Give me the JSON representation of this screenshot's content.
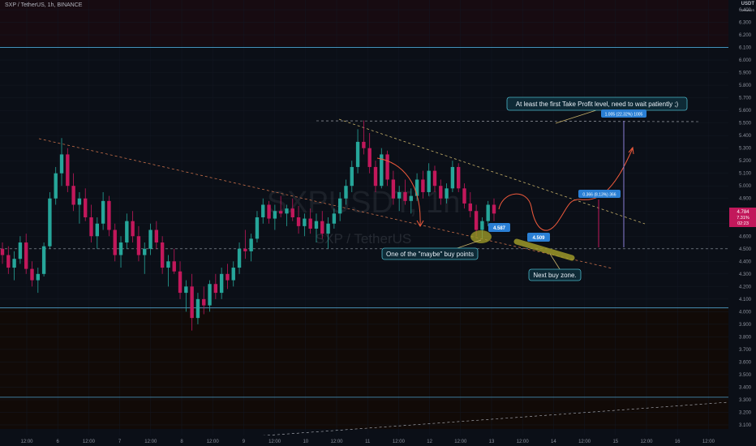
{
  "header": {
    "symbol_line": "SXP / TetherUS, 1h, BINANCE",
    "currency_top": "USDT",
    "currency_sub": "TetherUS"
  },
  "watermark": {
    "ticker": "SXPUSDT, 1h",
    "name": "SXP / TetherUS"
  },
  "annotations": {
    "maybe_buy": "One of the \"maybe\" buy points",
    "next_buy": "Next buy zone.",
    "take_profit": "At least the first Take Profit level, need to wait patiently ;)"
  },
  "price_labels": {
    "low1": "4.587",
    "low2": "4.509",
    "measure1": "0.366 (8.13%) 366",
    "measure2": "1.005 (22.32%) 1005",
    "last_price": "4.784",
    "last_change": "7.31%",
    "countdown": "02:23"
  },
  "colors": {
    "background": "#0b0f17",
    "bull": "#26a69a",
    "bear": "#c2185b",
    "annotation_line": "#c8b26a",
    "hline": "#4fa3d1",
    "curve": "#f05a3c",
    "callout_fill": "#0e2a36",
    "callout_border": "#4bb6c8",
    "label_blue": "#2a7fd4",
    "ellipse": "#a6a12a"
  },
  "chart_data": {
    "type": "candlestick",
    "title": "SXP / TetherUS, 1h, BINANCE",
    "ylim": [
      3.0,
      6.5
    ],
    "y_ticks": [
      "6.400",
      "6.300",
      "6.200",
      "6.100",
      "6.000",
      "5.900",
      "5.800",
      "5.700",
      "5.600",
      "5.500",
      "5.400",
      "5.300",
      "5.200",
      "5.100",
      "5.000",
      "4.900",
      "4.800",
      "4.700",
      "4.600",
      "4.500",
      "4.400",
      "4.300",
      "4.200",
      "4.100",
      "4.000",
      "3.900",
      "3.800",
      "3.700",
      "3.600",
      "3.500",
      "3.400",
      "3.300",
      "3.200",
      "3.100"
    ],
    "x_ticks": [
      "12:00",
      "6",
      "12:00",
      "7",
      "12:00",
      "8",
      "12:00",
      "9",
      "12:00",
      "10",
      "12:00",
      "11",
      "12:00",
      "12",
      "12:00",
      "13",
      "12:00",
      "14",
      "12:00",
      "15",
      "12:00",
      "16",
      "12:00"
    ],
    "horizontal_levels": [
      6.1,
      4.5,
      4.03,
      3.32
    ],
    "candles": [
      [
        4.5,
        4.55,
        4.38,
        4.45
      ],
      [
        4.45,
        4.52,
        4.3,
        4.35
      ],
      [
        4.35,
        4.48,
        4.25,
        4.42
      ],
      [
        4.42,
        4.6,
        4.38,
        4.55
      ],
      [
        4.55,
        4.62,
        4.3,
        4.34
      ],
      [
        4.34,
        4.4,
        4.2,
        4.25
      ],
      [
        4.25,
        4.35,
        4.15,
        4.3
      ],
      [
        4.3,
        4.55,
        4.28,
        4.52
      ],
      [
        4.52,
        4.95,
        4.5,
        4.9
      ],
      [
        4.9,
        5.15,
        4.85,
        5.1
      ],
      [
        5.1,
        5.38,
        5.0,
        5.25
      ],
      [
        5.25,
        5.3,
        4.95,
        5.0
      ],
      [
        5.0,
        5.1,
        4.8,
        4.85
      ],
      [
        4.85,
        4.95,
        4.7,
        4.9
      ],
      [
        4.9,
        4.98,
        4.72,
        4.75
      ],
      [
        4.75,
        4.85,
        4.55,
        4.6
      ],
      [
        4.6,
        4.75,
        4.5,
        4.7
      ],
      [
        4.7,
        4.95,
        4.65,
        4.88
      ],
      [
        4.88,
        4.92,
        4.6,
        4.65
      ],
      [
        4.65,
        4.7,
        4.4,
        4.45
      ],
      [
        4.45,
        4.6,
        4.35,
        4.55
      ],
      [
        4.55,
        4.78,
        4.5,
        4.72
      ],
      [
        4.72,
        4.8,
        4.55,
        4.6
      ],
      [
        4.6,
        4.68,
        4.4,
        4.45
      ],
      [
        4.45,
        4.55,
        4.3,
        4.5
      ],
      [
        4.5,
        4.7,
        4.45,
        4.65
      ],
      [
        4.65,
        4.72,
        4.5,
        4.55
      ],
      [
        4.55,
        4.6,
        4.3,
        4.35
      ],
      [
        4.35,
        4.45,
        4.2,
        4.4
      ],
      [
        4.4,
        4.5,
        4.3,
        4.32
      ],
      [
        4.32,
        4.4,
        4.1,
        4.15
      ],
      [
        4.15,
        4.25,
        4.0,
        4.2
      ],
      [
        4.2,
        4.3,
        3.85,
        3.95
      ],
      [
        3.95,
        4.15,
        3.9,
        4.1
      ],
      [
        4.1,
        4.2,
        3.98,
        4.05
      ],
      [
        4.05,
        4.25,
        4.0,
        4.22
      ],
      [
        4.22,
        4.3,
        4.1,
        4.15
      ],
      [
        4.15,
        4.35,
        4.1,
        4.3
      ],
      [
        4.3,
        4.38,
        4.18,
        4.25
      ],
      [
        4.25,
        4.4,
        4.2,
        4.35
      ],
      [
        4.35,
        4.55,
        4.3,
        4.5
      ],
      [
        4.5,
        4.65,
        4.42,
        4.48
      ],
      [
        4.48,
        4.62,
        4.4,
        4.58
      ],
      [
        4.58,
        4.8,
        4.55,
        4.75
      ],
      [
        4.75,
        4.9,
        4.7,
        4.85
      ],
      [
        4.85,
        4.88,
        4.7,
        4.74
      ],
      [
        4.74,
        4.85,
        4.65,
        4.8
      ],
      [
        4.8,
        4.92,
        4.75,
        4.78
      ],
      [
        4.78,
        4.85,
        4.68,
        4.82
      ],
      [
        4.82,
        4.9,
        4.72,
        4.75
      ],
      [
        4.75,
        4.84,
        4.62,
        4.68
      ],
      [
        4.68,
        4.78,
        4.6,
        4.74
      ],
      [
        4.74,
        4.82,
        4.62,
        4.66
      ],
      [
        4.66,
        4.78,
        4.55,
        4.72
      ],
      [
        4.72,
        4.8,
        4.58,
        4.62
      ],
      [
        4.62,
        4.75,
        4.5,
        4.7
      ],
      [
        4.7,
        4.82,
        4.66,
        4.78
      ],
      [
        4.78,
        4.95,
        4.72,
        4.9
      ],
      [
        4.9,
        5.05,
        4.85,
        5.0
      ],
      [
        5.0,
        5.2,
        4.95,
        5.15
      ],
      [
        5.15,
        5.45,
        5.1,
        5.35
      ],
      [
        5.35,
        5.52,
        5.25,
        5.3
      ],
      [
        5.3,
        5.42,
        5.1,
        5.15
      ],
      [
        5.15,
        5.2,
        4.95,
        5.0
      ],
      [
        5.0,
        5.3,
        4.98,
        5.25
      ],
      [
        5.25,
        5.28,
        5.0,
        5.05
      ],
      [
        5.05,
        5.12,
        4.85,
        4.9
      ],
      [
        4.9,
        5.0,
        4.8,
        4.95
      ],
      [
        4.95,
        5.05,
        4.85,
        4.88
      ],
      [
        4.88,
        4.98,
        4.78,
        4.92
      ],
      [
        4.92,
        5.1,
        4.88,
        5.05
      ],
      [
        5.05,
        5.12,
        4.9,
        4.95
      ],
      [
        4.95,
        5.18,
        4.92,
        5.12
      ],
      [
        5.12,
        5.16,
        4.95,
        5.0
      ],
      [
        5.0,
        5.05,
        4.85,
        4.9
      ],
      [
        4.9,
        5.02,
        4.86,
        4.98
      ],
      [
        4.98,
        5.2,
        4.95,
        5.15
      ],
      [
        5.15,
        5.18,
        4.95,
        4.98
      ],
      [
        4.98,
        5.02,
        4.82,
        4.86
      ],
      [
        4.86,
        4.95,
        4.75,
        4.8
      ],
      [
        4.8,
        4.85,
        4.6,
        4.65
      ],
      [
        4.65,
        4.75,
        4.58,
        4.72
      ],
      [
        4.72,
        4.88,
        4.68,
        4.85
      ],
      [
        4.85,
        4.9,
        4.72,
        4.78
      ]
    ]
  }
}
